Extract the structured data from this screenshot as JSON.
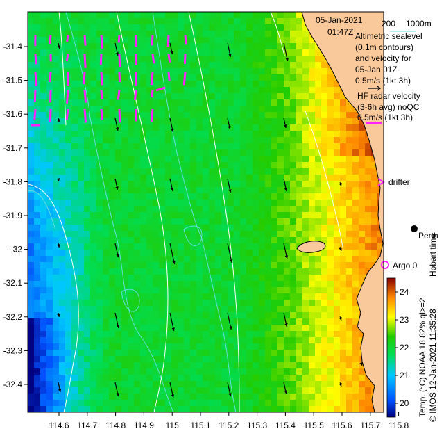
{
  "header": {
    "date": "05-Jan-2021",
    "time": "01:47Z",
    "isobath_labels": [
      "200",
      "1000m"
    ]
  },
  "legend": {
    "altimetry_lines": [
      "Altimetric sealevel",
      "(0.1m contours)",
      "and velocity for",
      "05-Jan 01Z",
      "0.5m/s (1kt 3h)"
    ],
    "hf_radar_lines": [
      "HF radar velocity",
      "(3-6h avg) noQC",
      "0.5m/s (1kt 3h)"
    ],
    "drifter_label": "drifter",
    "argo_label": "Argo 0",
    "city_label": "Perth",
    "timestamp": "Hobart time",
    "credit": "© IMOS 12-Jan-2021 11:35:28"
  },
  "colorbar": {
    "label": "Temp. (°C) NOAA 18 82% ql>=2",
    "min": 19.5,
    "max": 24.5,
    "ticks": [
      "20",
      "21",
      "22",
      "23",
      "24"
    ]
  },
  "axes": {
    "xticks": [
      "114.6",
      "114.7",
      "114.8",
      "114.9",
      "115",
      "115.1",
      "115.2",
      "115.3",
      "115.4",
      "115.5",
      "115.6",
      "115.7",
      "115.8"
    ],
    "yticks": [
      "-31.4",
      "-31.5",
      "-31.6",
      "-31.7",
      "-31.8",
      "-31.9",
      "-32",
      "-32.1",
      "-32.2",
      "-32.3",
      "-32.4"
    ]
  },
  "colors": {
    "land": "#f9c89b",
    "hf_radar": "#ff22ff",
    "altimetry_vector": "#000000",
    "sealevel_contour": "#ffffff",
    "isobath": "#66dddd",
    "argo": "#ff22ff"
  }
}
